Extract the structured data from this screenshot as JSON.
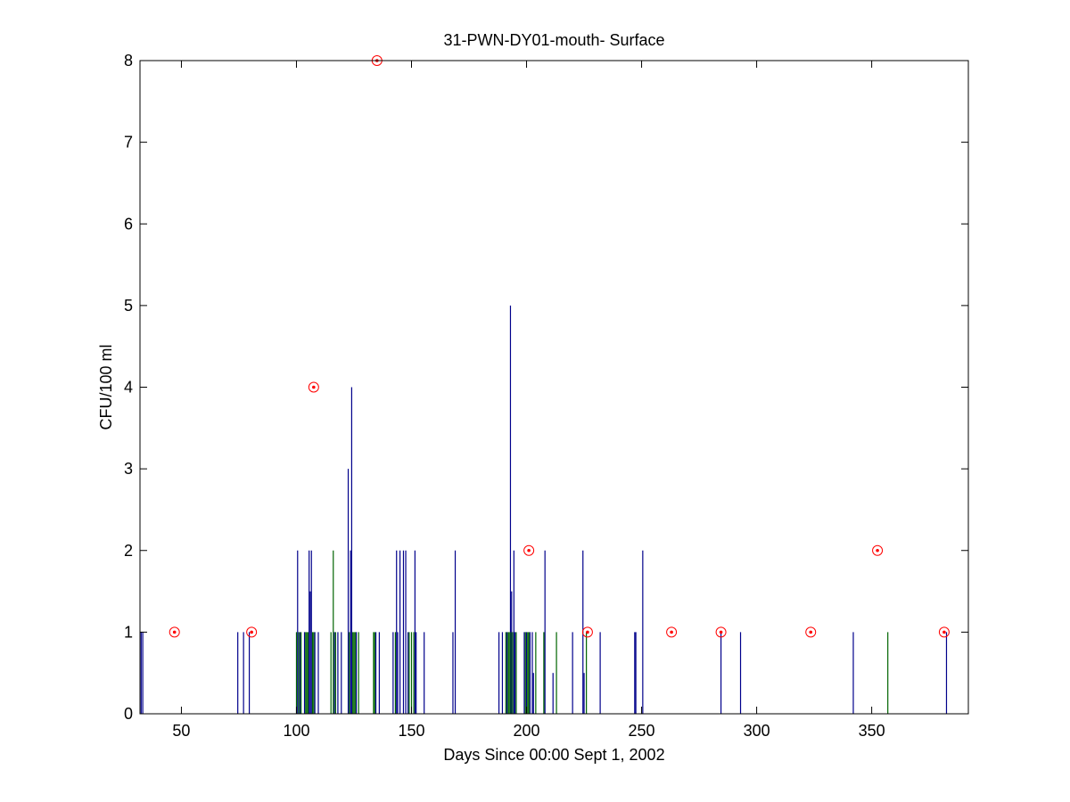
{
  "chart_data": {
    "type": "bar",
    "title": "31-PWN-DY01-mouth- Surface",
    "xlabel": "Days Since 00:00 Sept 1, 2002",
    "ylabel": "CFU/100 ml",
    "xlim": [
      32,
      392
    ],
    "ylim": [
      0,
      8
    ],
    "xticks": [
      50,
      100,
      150,
      200,
      250,
      300,
      350
    ],
    "yticks": [
      0,
      1,
      2,
      3,
      4,
      5,
      6,
      7,
      8
    ],
    "grid": false,
    "legend": "none",
    "series": [
      {
        "style": "stem",
        "color": "#00008b",
        "points": [
          [
            32.5,
            1
          ],
          [
            33.2,
            1
          ],
          [
            74.5,
            1
          ],
          [
            77,
            1
          ],
          [
            79.5,
            1
          ],
          [
            100.5,
            2
          ],
          [
            101.5,
            1
          ],
          [
            103.5,
            1
          ],
          [
            105.5,
            2
          ],
          [
            106,
            1.5
          ],
          [
            106.5,
            2
          ],
          [
            108,
            1
          ],
          [
            109.5,
            1
          ],
          [
            116.5,
            1
          ],
          [
            118,
            1
          ],
          [
            119.5,
            1
          ],
          [
            122.5,
            3
          ],
          [
            123.5,
            2
          ],
          [
            124,
            4
          ],
          [
            126,
            1
          ],
          [
            134.5,
            1
          ],
          [
            136,
            1
          ],
          [
            142,
            1
          ],
          [
            143.5,
            2
          ],
          [
            144,
            1
          ],
          [
            145,
            2
          ],
          [
            146.5,
            2
          ],
          [
            147.5,
            2
          ],
          [
            148.5,
            1
          ],
          [
            151.5,
            2
          ],
          [
            152,
            1
          ],
          [
            155.5,
            1
          ],
          [
            168,
            1
          ],
          [
            169,
            2
          ],
          [
            188,
            1
          ],
          [
            189.5,
            1
          ],
          [
            191.5,
            1
          ],
          [
            193,
            5
          ],
          [
            193.5,
            1.5
          ],
          [
            194.5,
            2
          ],
          [
            195,
            1
          ],
          [
            199,
            1
          ],
          [
            200,
            1
          ],
          [
            201.5,
            1
          ],
          [
            202.5,
            1
          ],
          [
            203,
            0.5
          ],
          [
            208,
            2
          ],
          [
            211.5,
            0.5
          ],
          [
            220,
            1
          ],
          [
            224.5,
            2
          ],
          [
            225,
            0.5
          ],
          [
            232,
            1
          ],
          [
            247,
            1
          ],
          [
            247.5,
            1
          ],
          [
            250.5,
            2
          ],
          [
            284.5,
            1
          ],
          [
            293,
            1
          ],
          [
            342,
            1
          ],
          [
            382.5,
            1
          ]
        ]
      },
      {
        "style": "stem",
        "color": "#006400",
        "points": [
          [
            100,
            1
          ],
          [
            101,
            1
          ],
          [
            102,
            1
          ],
          [
            104,
            1
          ],
          [
            104.5,
            1
          ],
          [
            105,
            1
          ],
          [
            107,
            1
          ],
          [
            107.5,
            1
          ],
          [
            115,
            1
          ],
          [
            116,
            2
          ],
          [
            117,
            1
          ],
          [
            123,
            1
          ],
          [
            124.5,
            1
          ],
          [
            125,
            1
          ],
          [
            125.5,
            1
          ],
          [
            127,
            1
          ],
          [
            133.5,
            1
          ],
          [
            134,
            1
          ],
          [
            143,
            1
          ],
          [
            149,
            1
          ],
          [
            150,
            1
          ],
          [
            151,
            1
          ],
          [
            191,
            1
          ],
          [
            192,
            1
          ],
          [
            192.5,
            1
          ],
          [
            193.2,
            1
          ],
          [
            194,
            1
          ],
          [
            195.5,
            1
          ],
          [
            199.5,
            1
          ],
          [
            200.5,
            1
          ],
          [
            201,
            1
          ],
          [
            204,
            1
          ],
          [
            207.5,
            1
          ],
          [
            213,
            1
          ],
          [
            226,
            1
          ],
          [
            357,
            1
          ]
        ]
      },
      {
        "style": "marker",
        "color": "#ff0000",
        "points": [
          [
            47,
            1
          ],
          [
            80.5,
            1
          ],
          [
            107.5,
            4
          ],
          [
            135,
            8
          ],
          [
            201,
            2
          ],
          [
            226.5,
            1
          ],
          [
            263,
            1
          ],
          [
            284.5,
            1
          ],
          [
            323.5,
            1
          ],
          [
            352.5,
            2
          ],
          [
            381.5,
            1
          ]
        ]
      }
    ]
  }
}
